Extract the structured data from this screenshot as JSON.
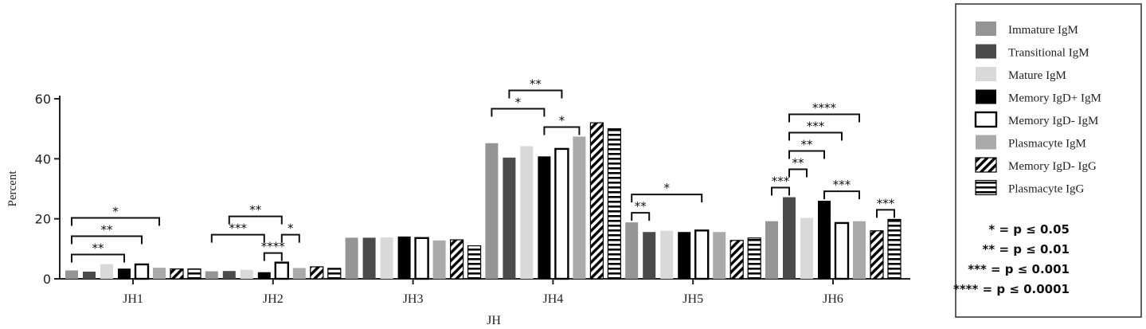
{
  "chart_data": {
    "type": "bar",
    "xlabel": "JH",
    "ylabel": "Percent",
    "ylim": [
      0,
      60
    ],
    "yticks": [
      0,
      20,
      40,
      60
    ],
    "categories": [
      "JH1",
      "JH2",
      "JH3",
      "JH4",
      "JH5",
      "JH6"
    ],
    "series": [
      {
        "name": "Immature IgM",
        "fill": "#959595",
        "values": [
          2.8,
          2.5,
          13.7,
          45.2,
          18.8,
          19.2
        ]
      },
      {
        "name": "Transitional IgM",
        "fill": "#4b4b4b",
        "values": [
          2.4,
          2.6,
          13.7,
          40.4,
          15.6,
          27.2
        ]
      },
      {
        "name": "Mature IgM",
        "fill": "#d9d9d9",
        "values": [
          4.9,
          3.0,
          13.8,
          44.2,
          16.0,
          20.3
        ]
      },
      {
        "name": "Memory IgD+ IgM",
        "fill": "#000000",
        "values": [
          3.4,
          2.2,
          14.1,
          40.8,
          15.6,
          26.0
        ]
      },
      {
        "name": "Memory IgD- IgM",
        "fill": "#ffffff",
        "values": [
          4.8,
          5.4,
          13.6,
          43.3,
          16.1,
          18.6
        ]
      },
      {
        "name": "Plasmacyte IgM",
        "fill": "#aaaaaa",
        "values": [
          3.7,
          3.6,
          12.8,
          47.4,
          15.6,
          19.2
        ]
      },
      {
        "name": "Memory IgD- IgG",
        "fill": "hatch",
        "values": [
          3.3,
          4.0,
          13.0,
          52.0,
          12.8,
          16.0
        ]
      },
      {
        "name": "Plasmacyte IgG",
        "fill": "hbars",
        "values": [
          3.3,
          3.5,
          11.0,
          50.0,
          13.6,
          19.8
        ]
      }
    ],
    "significance": [
      {
        "group": 0,
        "from": 0,
        "to": 5,
        "label": "*"
      },
      {
        "group": 0,
        "from": 0,
        "to": 4,
        "label": "**"
      },
      {
        "group": 0,
        "from": 0,
        "to": 3,
        "label": "**"
      },
      {
        "group": 1,
        "from": 0,
        "to": 3,
        "label": "***"
      },
      {
        "group": 1,
        "from": 1,
        "to": 4,
        "label": "**"
      },
      {
        "group": 1,
        "from": 3,
        "to": 4,
        "label": "****"
      },
      {
        "group": 1,
        "from": 4,
        "to": 5,
        "label": "*"
      },
      {
        "group": 3,
        "from": 0,
        "to": 3,
        "label": "*"
      },
      {
        "group": 3,
        "from": 3,
        "to": 5,
        "label": "*"
      },
      {
        "group": 3,
        "from": 1,
        "to": 4,
        "label": "**"
      },
      {
        "group": 4,
        "from": 0,
        "to": 1,
        "label": "**"
      },
      {
        "group": 4,
        "from": 0,
        "to": 4,
        "label": "*"
      },
      {
        "group": 5,
        "from": 0,
        "to": 1,
        "label": "***"
      },
      {
        "group": 5,
        "from": 1,
        "to": 2,
        "label": "**"
      },
      {
        "group": 5,
        "from": 3,
        "to": 5,
        "label": "***"
      },
      {
        "group": 5,
        "from": 1,
        "to": 3,
        "label": "**"
      },
      {
        "group": 5,
        "from": 1,
        "to": 4,
        "label": "***"
      },
      {
        "group": 5,
        "from": 1,
        "to": 5,
        "label": "****"
      },
      {
        "group": 5,
        "from": 6,
        "to": 7,
        "label": "***"
      }
    ],
    "legend_position": "right",
    "significance_key": [
      "* = p ≤ 0.05",
      "** = p ≤ 0.01",
      "*** = p ≤ 0.001",
      "**** = p ≤ 0.0001"
    ]
  }
}
